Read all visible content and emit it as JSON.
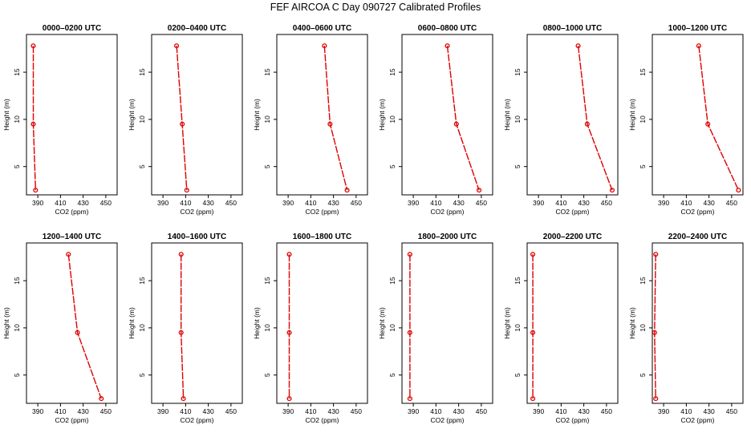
{
  "title": "FEF AIRCOA C  Day 090727  Calibrated Profiles",
  "colors": {
    "series": "#dd0000",
    "axis": "#000000",
    "background": "#ffffff"
  },
  "chart_data": [
    {
      "type": "line",
      "title": "0000–0200 UTC",
      "xlabel": "CO2 (ppm)",
      "ylabel": "Height (m)",
      "xlim": [
        380,
        460
      ],
      "ylim": [
        2,
        19
      ],
      "xticks": [
        390,
        410,
        430,
        450
      ],
      "yticks": [
        5,
        10,
        15
      ],
      "heights": [
        17.8,
        9.5,
        2.5
      ],
      "co2": [
        386,
        386,
        388
      ]
    },
    {
      "type": "line",
      "title": "0200–0400 UTC",
      "xlabel": "CO2 (ppm)",
      "ylabel": "Height (m)",
      "xlim": [
        380,
        460
      ],
      "ylim": [
        2,
        19
      ],
      "xticks": [
        390,
        410,
        430,
        450
      ],
      "yticks": [
        5,
        10,
        15
      ],
      "heights": [
        17.8,
        9.5,
        2.5
      ],
      "co2": [
        402,
        407,
        411
      ]
    },
    {
      "type": "line",
      "title": "0400–0600 UTC",
      "xlabel": "CO2 (ppm)",
      "ylabel": "Height (m)",
      "xlim": [
        380,
        460
      ],
      "ylim": [
        2,
        19
      ],
      "xticks": [
        390,
        410,
        430,
        450
      ],
      "yticks": [
        5,
        10,
        15
      ],
      "heights": [
        17.8,
        9.5,
        2.5
      ],
      "co2": [
        422,
        427,
        442
      ]
    },
    {
      "type": "line",
      "title": "0600–0800 UTC",
      "xlabel": "CO2 (ppm)",
      "ylabel": "Height (m)",
      "xlim": [
        380,
        460
      ],
      "ylim": [
        2,
        19
      ],
      "xticks": [
        390,
        410,
        430,
        450
      ],
      "yticks": [
        5,
        10,
        15
      ],
      "heights": [
        17.8,
        9.5,
        2.5
      ],
      "co2": [
        420,
        428,
        448
      ]
    },
    {
      "type": "line",
      "title": "0800–1000 UTC",
      "xlabel": "CO2 (ppm)",
      "ylabel": "Height (m)",
      "xlim": [
        380,
        460
      ],
      "ylim": [
        2,
        19
      ],
      "xticks": [
        390,
        410,
        430,
        450
      ],
      "yticks": [
        5,
        10,
        15
      ],
      "heights": [
        17.8,
        9.5,
        2.5
      ],
      "co2": [
        425,
        433,
        455
      ]
    },
    {
      "type": "line",
      "title": "1000–1200 UTC",
      "xlabel": "CO2 (ppm)",
      "ylabel": "Height (m)",
      "xlim": [
        380,
        460
      ],
      "ylim": [
        2,
        19
      ],
      "xticks": [
        390,
        410,
        430,
        450
      ],
      "yticks": [
        5,
        10,
        15
      ],
      "heights": [
        17.8,
        9.5,
        2.5
      ],
      "co2": [
        421,
        429,
        456
      ]
    },
    {
      "type": "line",
      "title": "1200–1400 UTC",
      "xlabel": "CO2 (ppm)",
      "ylabel": "Height (m)",
      "xlim": [
        380,
        460
      ],
      "ylim": [
        2,
        19
      ],
      "xticks": [
        390,
        410,
        430,
        450
      ],
      "yticks": [
        5,
        10,
        15
      ],
      "heights": [
        17.8,
        9.5,
        2.5
      ],
      "co2": [
        417,
        425,
        446
      ]
    },
    {
      "type": "line",
      "title": "1400–1600 UTC",
      "xlabel": "CO2 (ppm)",
      "ylabel": "Height (m)",
      "xlim": [
        380,
        460
      ],
      "ylim": [
        2,
        19
      ],
      "xticks": [
        390,
        410,
        430,
        450
      ],
      "yticks": [
        5,
        10,
        15
      ],
      "heights": [
        17.8,
        9.5,
        2.5
      ],
      "co2": [
        406,
        406,
        408
      ]
    },
    {
      "type": "line",
      "title": "1600–1800 UTC",
      "xlabel": "CO2 (ppm)",
      "ylabel": "Height (m)",
      "xlim": [
        380,
        460
      ],
      "ylim": [
        2,
        19
      ],
      "xticks": [
        390,
        410,
        430,
        450
      ],
      "yticks": [
        5,
        10,
        15
      ],
      "heights": [
        17.8,
        9.5,
        2.5
      ],
      "co2": [
        391,
        391,
        391
      ]
    },
    {
      "type": "line",
      "title": "1800–2000 UTC",
      "xlabel": "CO2 (ppm)",
      "ylabel": "Height (m)",
      "xlim": [
        380,
        460
      ],
      "ylim": [
        2,
        19
      ],
      "xticks": [
        390,
        410,
        430,
        450
      ],
      "yticks": [
        5,
        10,
        15
      ],
      "heights": [
        17.8,
        9.5,
        2.5
      ],
      "co2": [
        387,
        387,
        387
      ]
    },
    {
      "type": "line",
      "title": "2000–2200 UTC",
      "xlabel": "CO2 (ppm)",
      "ylabel": "Height (m)",
      "xlim": [
        380,
        460
      ],
      "ylim": [
        2,
        19
      ],
      "xticks": [
        390,
        410,
        430,
        450
      ],
      "yticks": [
        5,
        10,
        15
      ],
      "heights": [
        17.8,
        9.5,
        2.5
      ],
      "co2": [
        385,
        385,
        385
      ]
    },
    {
      "type": "line",
      "title": "2200–2400 UTC",
      "xlabel": "CO2 (ppm)",
      "ylabel": "Height (m)",
      "xlim": [
        380,
        460
      ],
      "ylim": [
        2,
        19
      ],
      "xticks": [
        390,
        410,
        430,
        450
      ],
      "yticks": [
        5,
        10,
        15
      ],
      "heights": [
        17.8,
        9.5,
        2.5
      ],
      "co2": [
        383,
        382,
        383
      ]
    }
  ]
}
